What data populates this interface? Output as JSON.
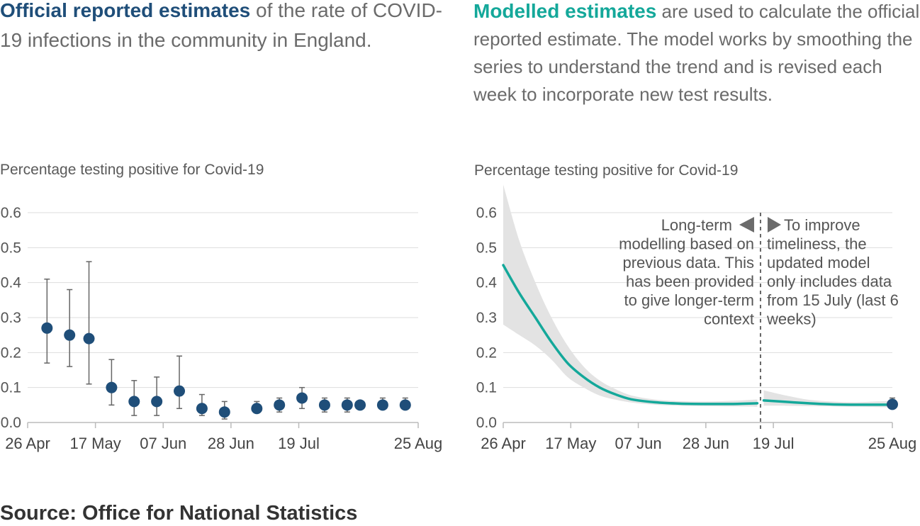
{
  "heading_left": {
    "highlight": "Official reported estimates",
    "rest": " of the rate of COVID-19 infections in the community in England."
  },
  "heading_right": {
    "highlight": "Modelled estimates",
    "rest": " are used to calculate the official reported estimate. The model works by smoothing the series to understand the trend and is revised each week to incorporate new test results."
  },
  "source": "Source: Office for National Statistics",
  "colors": {
    "official": "#1f4e79",
    "model": "#14a89a",
    "band": "#e3e3e3",
    "errorbar": "#666666"
  },
  "chart_data": [
    {
      "type": "scatter",
      "ylabel": "Percentage testing positive for Covid-19",
      "ylim": [
        0,
        0.6
      ],
      "yticks": [
        "0.0",
        "0.1",
        "0.2",
        "0.3",
        "0.4",
        "0.5",
        "0.6"
      ],
      "xlim": [
        "2021-04-26",
        "2021-08-25"
      ],
      "xticks": [
        {
          "date": "2021-04-26",
          "label": "26 Apr"
        },
        {
          "date": "2021-05-17",
          "label": "17 May"
        },
        {
          "date": "2021-06-07",
          "label": "07 Jun"
        },
        {
          "date": "2021-06-28",
          "label": "28 Jun"
        },
        {
          "date": "2021-07-19",
          "label": "19 Jul"
        },
        {
          "date": "2021-08-25",
          "label": "25 Aug"
        }
      ],
      "points": [
        {
          "date": "2021-05-02",
          "y": 0.27,
          "low": 0.17,
          "high": 0.41
        },
        {
          "date": "2021-05-09",
          "y": 0.25,
          "low": 0.16,
          "high": 0.38
        },
        {
          "date": "2021-05-15",
          "y": 0.24,
          "low": 0.11,
          "high": 0.46
        },
        {
          "date": "2021-05-22",
          "y": 0.1,
          "low": 0.05,
          "high": 0.18
        },
        {
          "date": "2021-05-29",
          "y": 0.06,
          "low": 0.02,
          "high": 0.12
        },
        {
          "date": "2021-06-05",
          "y": 0.06,
          "low": 0.02,
          "high": 0.13
        },
        {
          "date": "2021-06-12",
          "y": 0.09,
          "low": 0.04,
          "high": 0.19
        },
        {
          "date": "2021-06-19",
          "y": 0.04,
          "low": 0.02,
          "high": 0.08
        },
        {
          "date": "2021-06-26",
          "y": 0.03,
          "low": 0.01,
          "high": 0.06
        },
        {
          "date": "2021-07-06",
          "y": 0.04,
          "low": 0.03,
          "high": 0.06
        },
        {
          "date": "2021-07-13",
          "y": 0.05,
          "low": 0.03,
          "high": 0.07
        },
        {
          "date": "2021-07-20",
          "y": 0.07,
          "low": 0.04,
          "high": 0.1
        },
        {
          "date": "2021-07-27",
          "y": 0.05,
          "low": 0.03,
          "high": 0.07
        },
        {
          "date": "2021-08-03",
          "y": 0.05,
          "low": 0.03,
          "high": 0.07
        },
        {
          "date": "2021-08-07",
          "y": 0.05,
          "low": 0.04,
          "high": 0.06
        },
        {
          "date": "2021-08-14",
          "y": 0.05,
          "low": 0.04,
          "high": 0.07
        },
        {
          "date": "2021-08-21",
          "y": 0.05,
          "low": 0.04,
          "high": 0.07
        }
      ]
    },
    {
      "type": "line",
      "ylabel": "Percentage testing positive for Covid-19",
      "ylim": [
        0,
        0.6
      ],
      "yticks": [
        "0.0",
        "0.1",
        "0.2",
        "0.3",
        "0.4",
        "0.5",
        "0.6"
      ],
      "xlim": [
        "2021-04-26",
        "2021-08-25"
      ],
      "xticks": [
        {
          "date": "2021-04-26",
          "label": "26 Apr"
        },
        {
          "date": "2021-05-17",
          "label": "17 May"
        },
        {
          "date": "2021-06-07",
          "label": "07 Jun"
        },
        {
          "date": "2021-06-28",
          "label": "28 Jun"
        },
        {
          "date": "2021-07-19",
          "label": "19 Jul"
        },
        {
          "date": "2021-08-25",
          "label": "25 Aug"
        }
      ],
      "cutoff_date": "2021-07-15",
      "long_term": [
        {
          "date": "2021-04-26",
          "y": 0.45,
          "low": 0.28,
          "high": 0.68
        },
        {
          "date": "2021-05-01",
          "y": 0.37,
          "low": 0.25,
          "high": 0.52
        },
        {
          "date": "2021-05-06",
          "y": 0.3,
          "low": 0.22,
          "high": 0.4
        },
        {
          "date": "2021-05-11",
          "y": 0.23,
          "low": 0.18,
          "high": 0.3
        },
        {
          "date": "2021-05-16",
          "y": 0.17,
          "low": 0.13,
          "high": 0.22
        },
        {
          "date": "2021-05-21",
          "y": 0.13,
          "low": 0.1,
          "high": 0.16
        },
        {
          "date": "2021-05-26",
          "y": 0.1,
          "low": 0.077,
          "high": 0.12
        },
        {
          "date": "2021-05-31",
          "y": 0.08,
          "low": 0.065,
          "high": 0.095
        },
        {
          "date": "2021-06-05",
          "y": 0.066,
          "low": 0.057,
          "high": 0.077
        },
        {
          "date": "2021-06-12",
          "y": 0.058,
          "low": 0.051,
          "high": 0.066
        },
        {
          "date": "2021-06-20",
          "y": 0.054,
          "low": 0.048,
          "high": 0.061
        },
        {
          "date": "2021-06-28",
          "y": 0.053,
          "low": 0.047,
          "high": 0.06
        },
        {
          "date": "2021-07-06",
          "y": 0.053,
          "low": 0.046,
          "high": 0.062
        },
        {
          "date": "2021-07-14",
          "y": 0.055,
          "low": 0.045,
          "high": 0.066
        }
      ],
      "updated": [
        {
          "date": "2021-07-16",
          "y": 0.063,
          "low": 0.048,
          "high": 0.092
        },
        {
          "date": "2021-07-23",
          "y": 0.059,
          "low": 0.048,
          "high": 0.077
        },
        {
          "date": "2021-07-30",
          "y": 0.055,
          "low": 0.047,
          "high": 0.065
        },
        {
          "date": "2021-08-06",
          "y": 0.052,
          "low": 0.046,
          "high": 0.06
        },
        {
          "date": "2021-08-13",
          "y": 0.051,
          "low": 0.045,
          "high": 0.058
        },
        {
          "date": "2021-08-20",
          "y": 0.051,
          "low": 0.044,
          "high": 0.06
        },
        {
          "date": "2021-08-25",
          "y": 0.051,
          "low": 0.043,
          "high": 0.062
        }
      ],
      "official_point": {
        "date": "2021-08-25",
        "y": 0.052,
        "low": 0.04,
        "high": 0.07
      },
      "annotation_left": [
        "Long-term",
        "modelling based on",
        "previous data. This",
        "has been provided",
        "to give longer-term",
        "context"
      ],
      "annotation_right": [
        "To improve",
        "timeliness, the",
        "updated model",
        "only includes data",
        "from 15 July (last 6",
        "weeks)"
      ]
    }
  ]
}
